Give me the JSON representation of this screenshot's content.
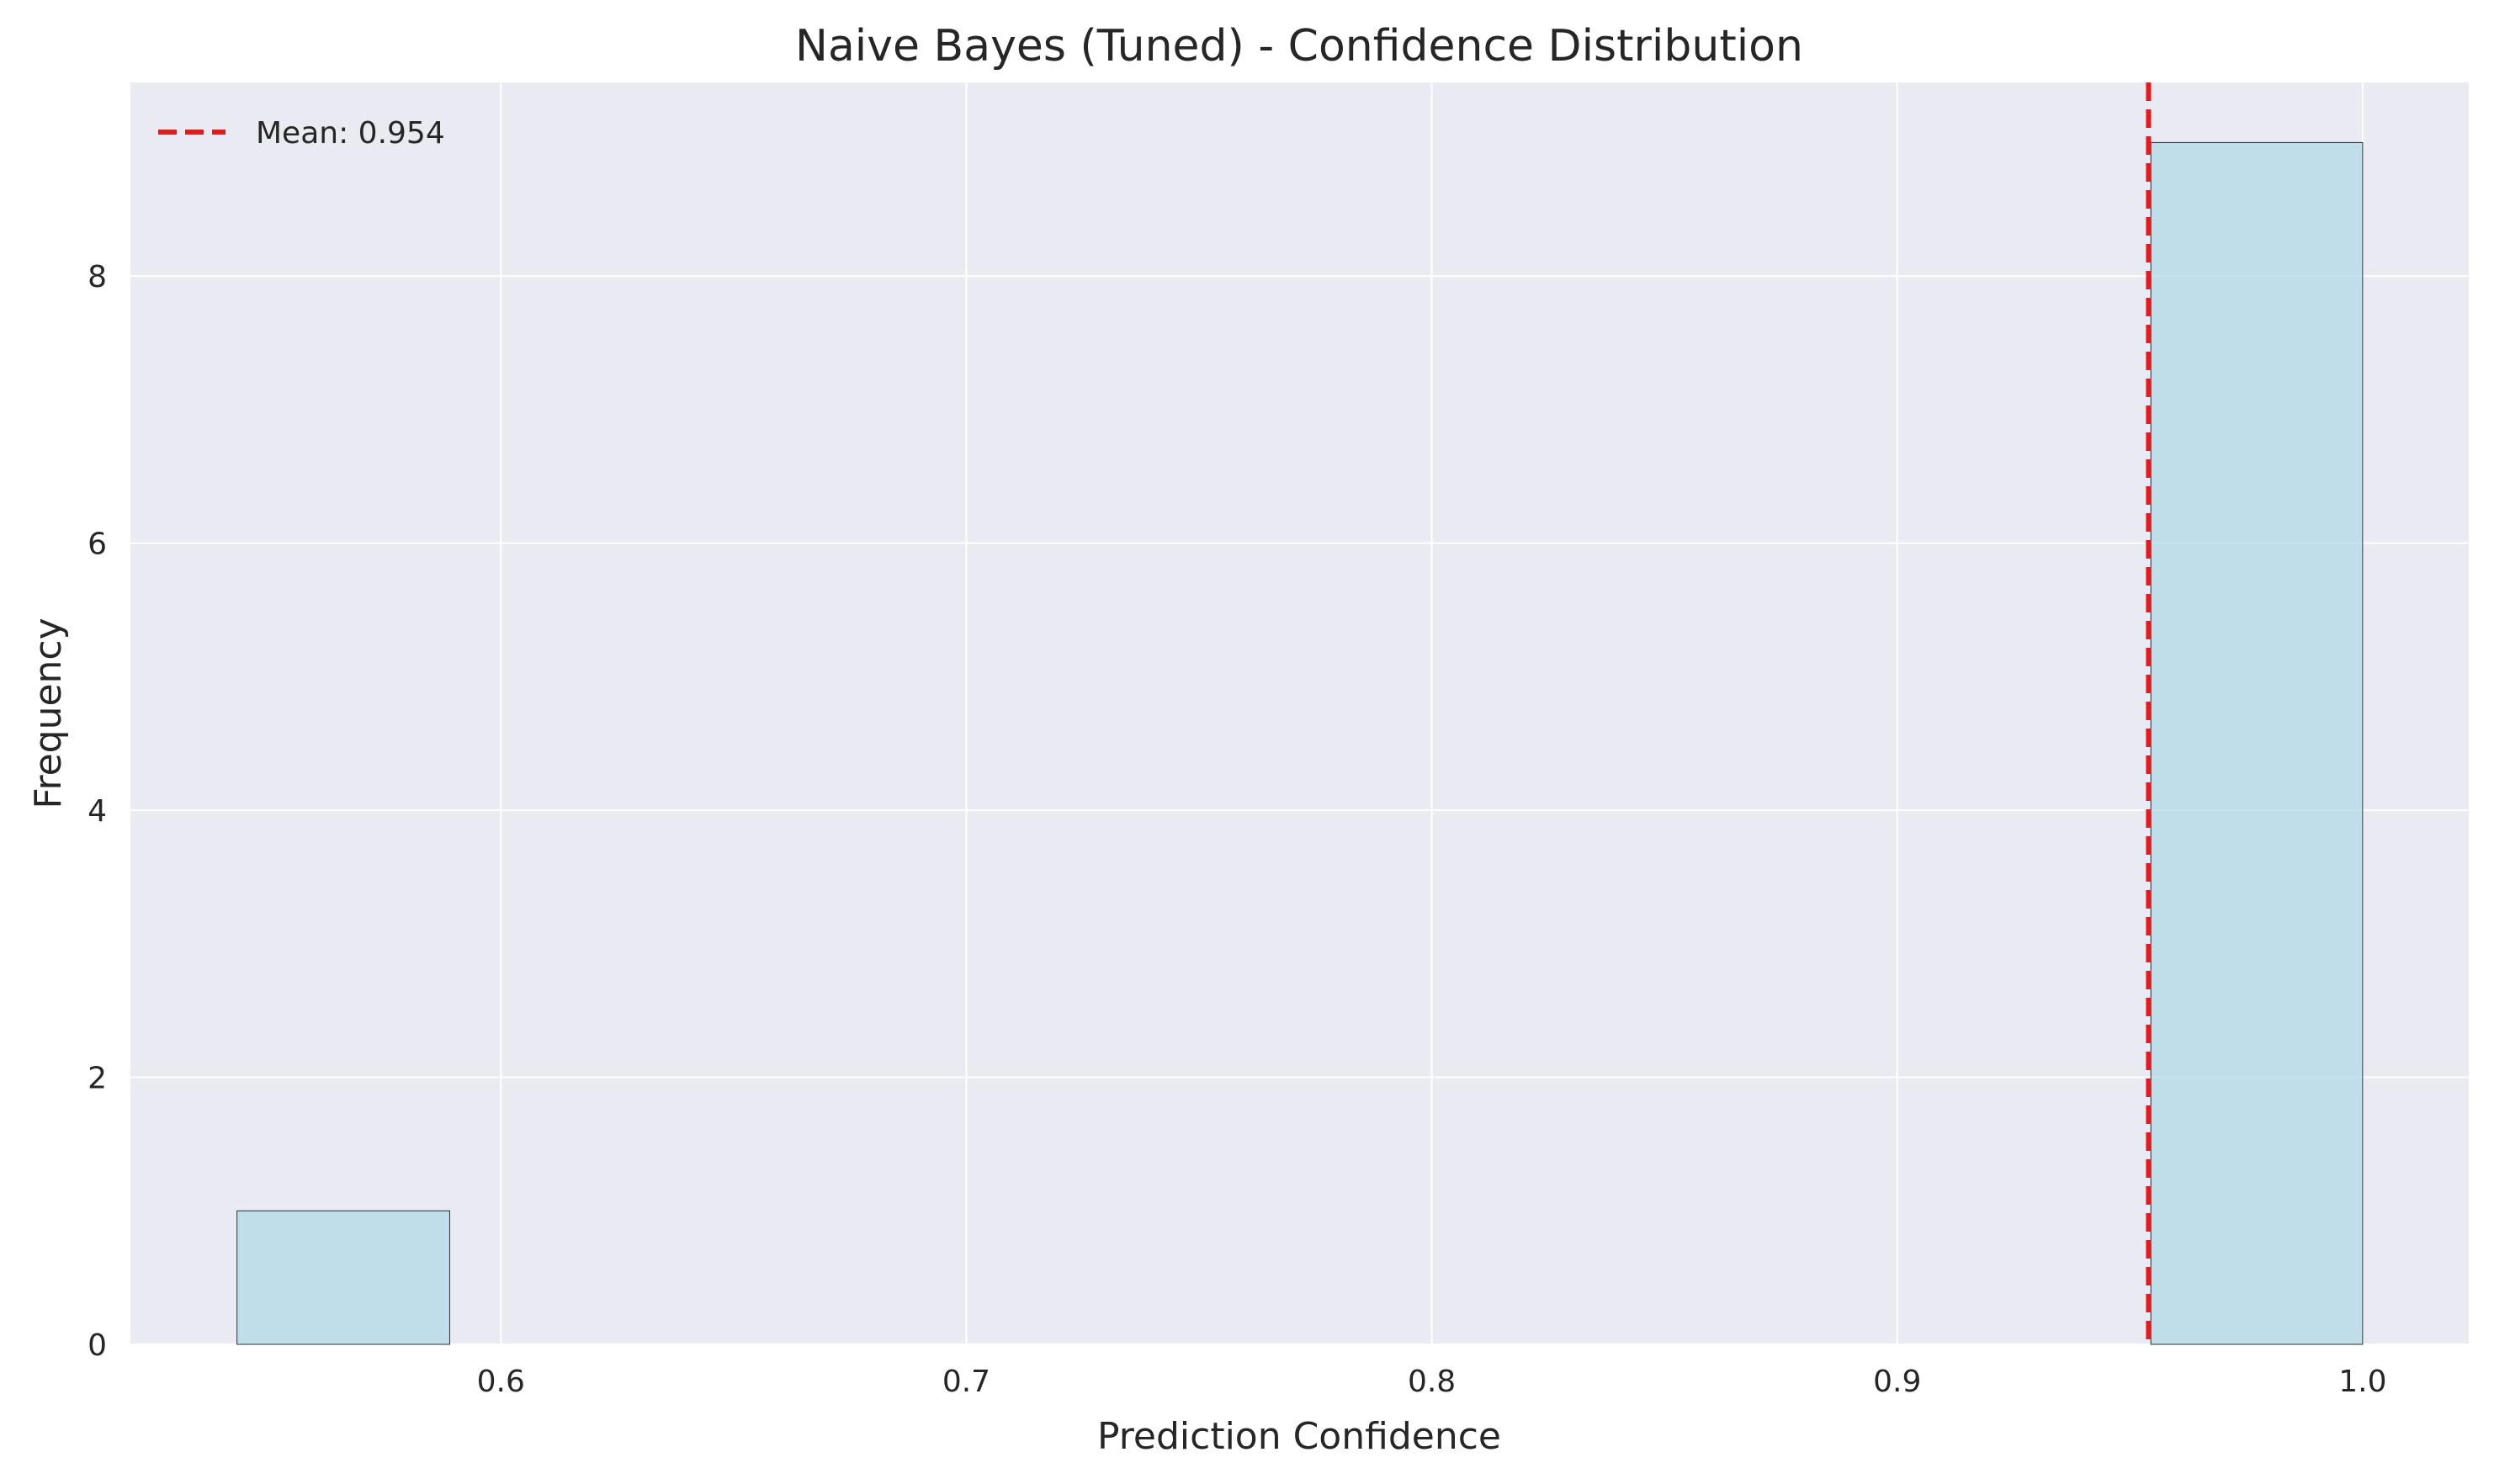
{
  "chart_data": {
    "type": "bar",
    "title": "Naive Bayes (Tuned) - Confidence Distribution",
    "xlabel": "Prediction Confidence",
    "ylabel": "Frequency",
    "xlim": [
      0.5204,
      1.0228
    ],
    "ylim": [
      0,
      9.45
    ],
    "xticks": [
      0.6,
      0.7,
      0.8,
      0.9,
      1.0
    ],
    "xtick_labels": [
      "0.6",
      "0.7",
      "0.8",
      "0.9",
      "1.0"
    ],
    "yticks": [
      0,
      2,
      4,
      6,
      8
    ],
    "ytick_labels": [
      "0",
      "2",
      "4",
      "6",
      "8"
    ],
    "bins": [
      {
        "x0": 0.5433,
        "x1": 0.589,
        "count": 1
      },
      {
        "x0": 0.589,
        "x1": 0.6347,
        "count": 0
      },
      {
        "x0": 0.6347,
        "x1": 0.6804,
        "count": 0
      },
      {
        "x0": 0.6804,
        "x1": 0.7261,
        "count": 0
      },
      {
        "x0": 0.7261,
        "x1": 0.7718,
        "count": 0
      },
      {
        "x0": 0.7718,
        "x1": 0.8174,
        "count": 0
      },
      {
        "x0": 0.8174,
        "x1": 0.8631,
        "count": 0
      },
      {
        "x0": 0.8631,
        "x1": 0.9088,
        "count": 0
      },
      {
        "x0": 0.9088,
        "x1": 0.9545,
        "count": 0
      },
      {
        "x0": 0.9545,
        "x1": 1.0,
        "count": 9
      }
    ],
    "mean_line": {
      "value": 0.954,
      "label": "Mean: 0.954",
      "color": "#e41a1c"
    },
    "bar_color": "#add8e6",
    "bar_edge_color": "#000000",
    "background_color": "#eaeaf2",
    "grid": true,
    "legend_position": "top-left"
  }
}
